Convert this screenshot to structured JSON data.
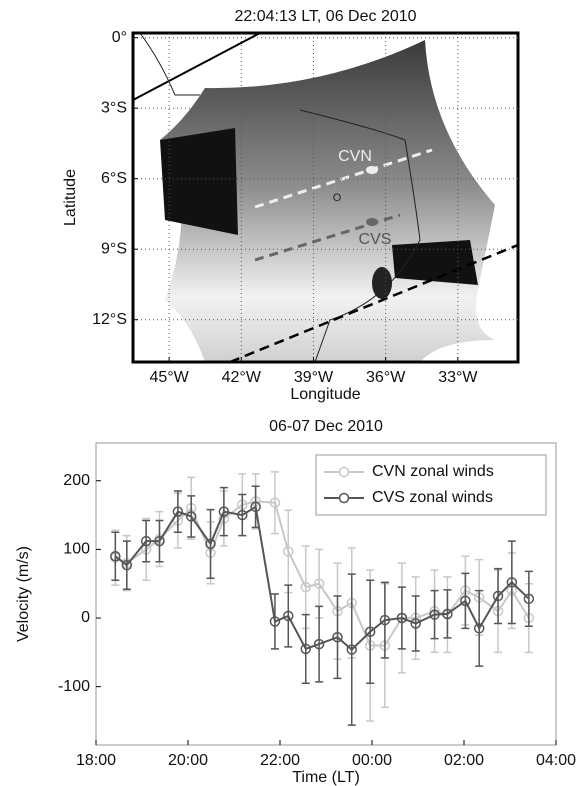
{
  "chart_data": [
    {
      "type": "map",
      "title": "22:04:13 LT, 06 Dec 2010",
      "xlabel": "Longitude",
      "ylabel": "Latitude",
      "xlim": [
        -46.5,
        -30.5
      ],
      "ylim": [
        -13.8,
        0.2
      ],
      "xticks": [
        {
          "value": -45,
          "label": "45°W"
        },
        {
          "value": -42,
          "label": "42°W"
        },
        {
          "value": -39,
          "label": "39°W"
        },
        {
          "value": -36,
          "label": "36°W"
        },
        {
          "value": -33,
          "label": "33°W"
        }
      ],
      "yticks": [
        {
          "value": 0,
          "label": "0°"
        },
        {
          "value": -3,
          "label": "3°S"
        },
        {
          "value": -6,
          "label": "6°S"
        },
        {
          "value": -9,
          "label": "9°S"
        },
        {
          "value": -12,
          "label": "12°S"
        }
      ],
      "grid": true,
      "annotations": [
        "CVN",
        "CVS",
        "O"
      ]
    },
    {
      "type": "line",
      "title": "06-07 Dec 2010",
      "xlabel": "Time (LT)",
      "ylabel": "Velocity (m/s)",
      "x": [
        18.42,
        18.67,
        19.09,
        19.38,
        19.78,
        20.07,
        20.49,
        20.78,
        21.18,
        21.47,
        21.89,
        22.18,
        22.56,
        22.85,
        23.25,
        23.56,
        23.96,
        24.28,
        24.65,
        24.95,
        25.36,
        25.64,
        26.03,
        26.33,
        26.74,
        27.04,
        27.41
      ],
      "xlim": [
        18,
        28
      ],
      "ylim": [
        -185,
        255
      ],
      "xticks": [
        {
          "value": 18,
          "label": "18:00"
        },
        {
          "value": 20,
          "label": "20:00"
        },
        {
          "value": 22,
          "label": "22:00"
        },
        {
          "value": 24,
          "label": "00:00"
        },
        {
          "value": 26,
          "label": "02:00"
        },
        {
          "value": 28,
          "label": "04:00"
        }
      ],
      "yticks": [
        -100,
        0,
        100,
        200
      ],
      "legend": "upper right",
      "series": [
        {
          "name": "CVN zonal winds",
          "color": "#c8c8c8",
          "values": [
            88,
            80,
            100,
            115,
            142,
            160,
            95,
            145,
            165,
            170,
            168,
            97,
            45,
            50,
            10,
            22,
            -40,
            -40,
            0,
            0,
            10,
            5,
            40,
            30,
            10,
            40,
            0
          ],
          "errors": [
            40,
            40,
            45,
            40,
            40,
            45,
            45,
            40,
            45,
            40,
            45,
            60,
            60,
            50,
            70,
            80,
            110,
            90,
            80,
            60,
            60,
            55,
            50,
            55,
            60,
            55,
            50
          ]
        },
        {
          "name": "CVS zonal winds",
          "color": "#555555",
          "values": [
            90,
            77,
            112,
            112,
            155,
            148,
            108,
            155,
            150,
            162,
            -5,
            3,
            -45,
            -38,
            -28,
            -46,
            -20,
            -3,
            0,
            -8,
            5,
            6,
            25,
            -15,
            32,
            52,
            28
          ],
          "errors": [
            35,
            35,
            30,
            30,
            30,
            30,
            50,
            35,
            30,
            30,
            40,
            45,
            50,
            55,
            60,
            110,
            75,
            55,
            45,
            40,
            35,
            35,
            40,
            55,
            40,
            60,
            40
          ]
        }
      ]
    }
  ]
}
